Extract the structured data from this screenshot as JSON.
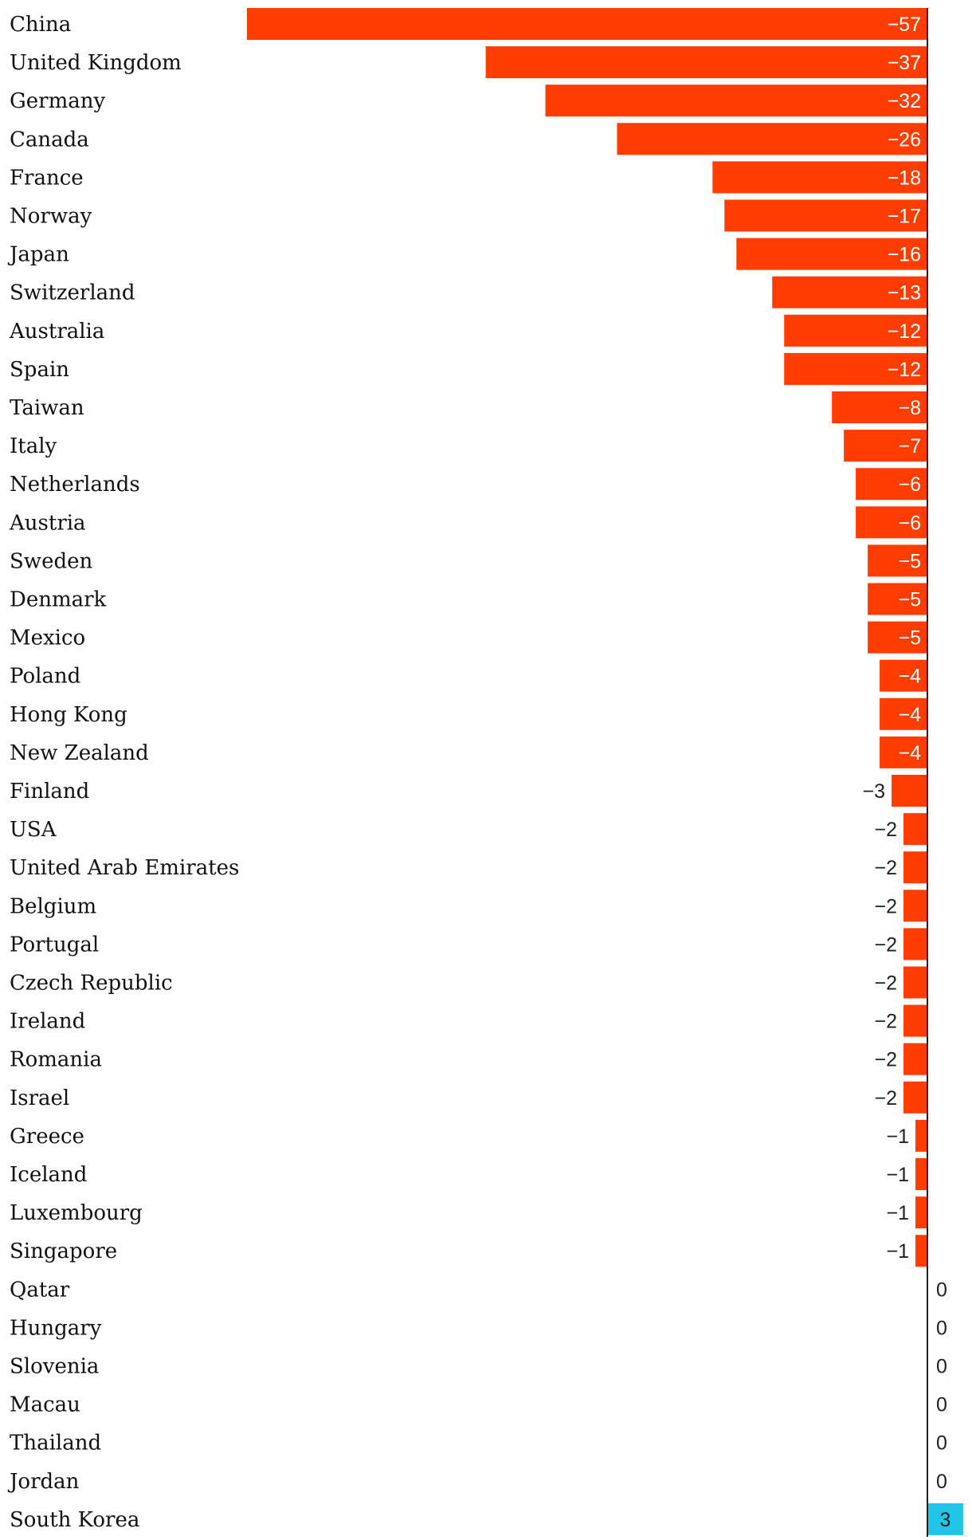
{
  "chart_data": {
    "type": "bar",
    "orientation": "horizontal",
    "title": "",
    "xlabel": "",
    "ylabel": "",
    "xlim": [
      -57,
      3
    ],
    "grid": false,
    "categories": [
      "China",
      "United Kingdom",
      "Germany",
      "Canada",
      "France",
      "Norway",
      "Japan",
      "Switzerland",
      "Australia",
      "Spain",
      "Taiwan",
      "Italy",
      "Netherlands",
      "Austria",
      "Sweden",
      "Denmark",
      "Mexico",
      "Poland",
      "Hong Kong",
      "New Zealand",
      "Finland",
      "USA",
      "United Arab Emirates",
      "Belgium",
      "Portugal",
      "Czech Republic",
      "Ireland",
      "Romania",
      "Israel",
      "Greece",
      "Iceland",
      "Luxembourg",
      "Singapore",
      "Qatar",
      "Hungary",
      "Slovenia",
      "Macau",
      "Thailand",
      "Jordan",
      "South Korea"
    ],
    "values": [
      -57,
      -37,
      -32,
      -26,
      -18,
      -17,
      -16,
      -13,
      -12,
      -12,
      -8,
      -7,
      -6,
      -6,
      -5,
      -5,
      -5,
      -4,
      -4,
      -4,
      -3,
      -2,
      -2,
      -2,
      -2,
      -2,
      -2,
      -2,
      -2,
      -1,
      -1,
      -1,
      -1,
      0,
      0,
      0,
      0,
      0,
      0,
      3
    ],
    "value_labels": [
      "−57",
      "−37",
      "−32",
      "−26",
      "−18",
      "−17",
      "−16",
      "−13",
      "−12",
      "−12",
      "−8",
      "−7",
      "−6",
      "−6",
      "−5",
      "−5",
      "−5",
      "−4",
      "−4",
      "−4",
      "−3",
      "−2",
      "−2",
      "−2",
      "−2",
      "−2",
      "−2",
      "−2",
      "−2",
      "−1",
      "−1",
      "−1",
      "−1",
      "0",
      "0",
      "0",
      "0",
      "0",
      "0",
      "3"
    ],
    "colors": {
      "negative": "#ff3d00",
      "positive": "#22c4e8",
      "axis": "#222222"
    }
  }
}
